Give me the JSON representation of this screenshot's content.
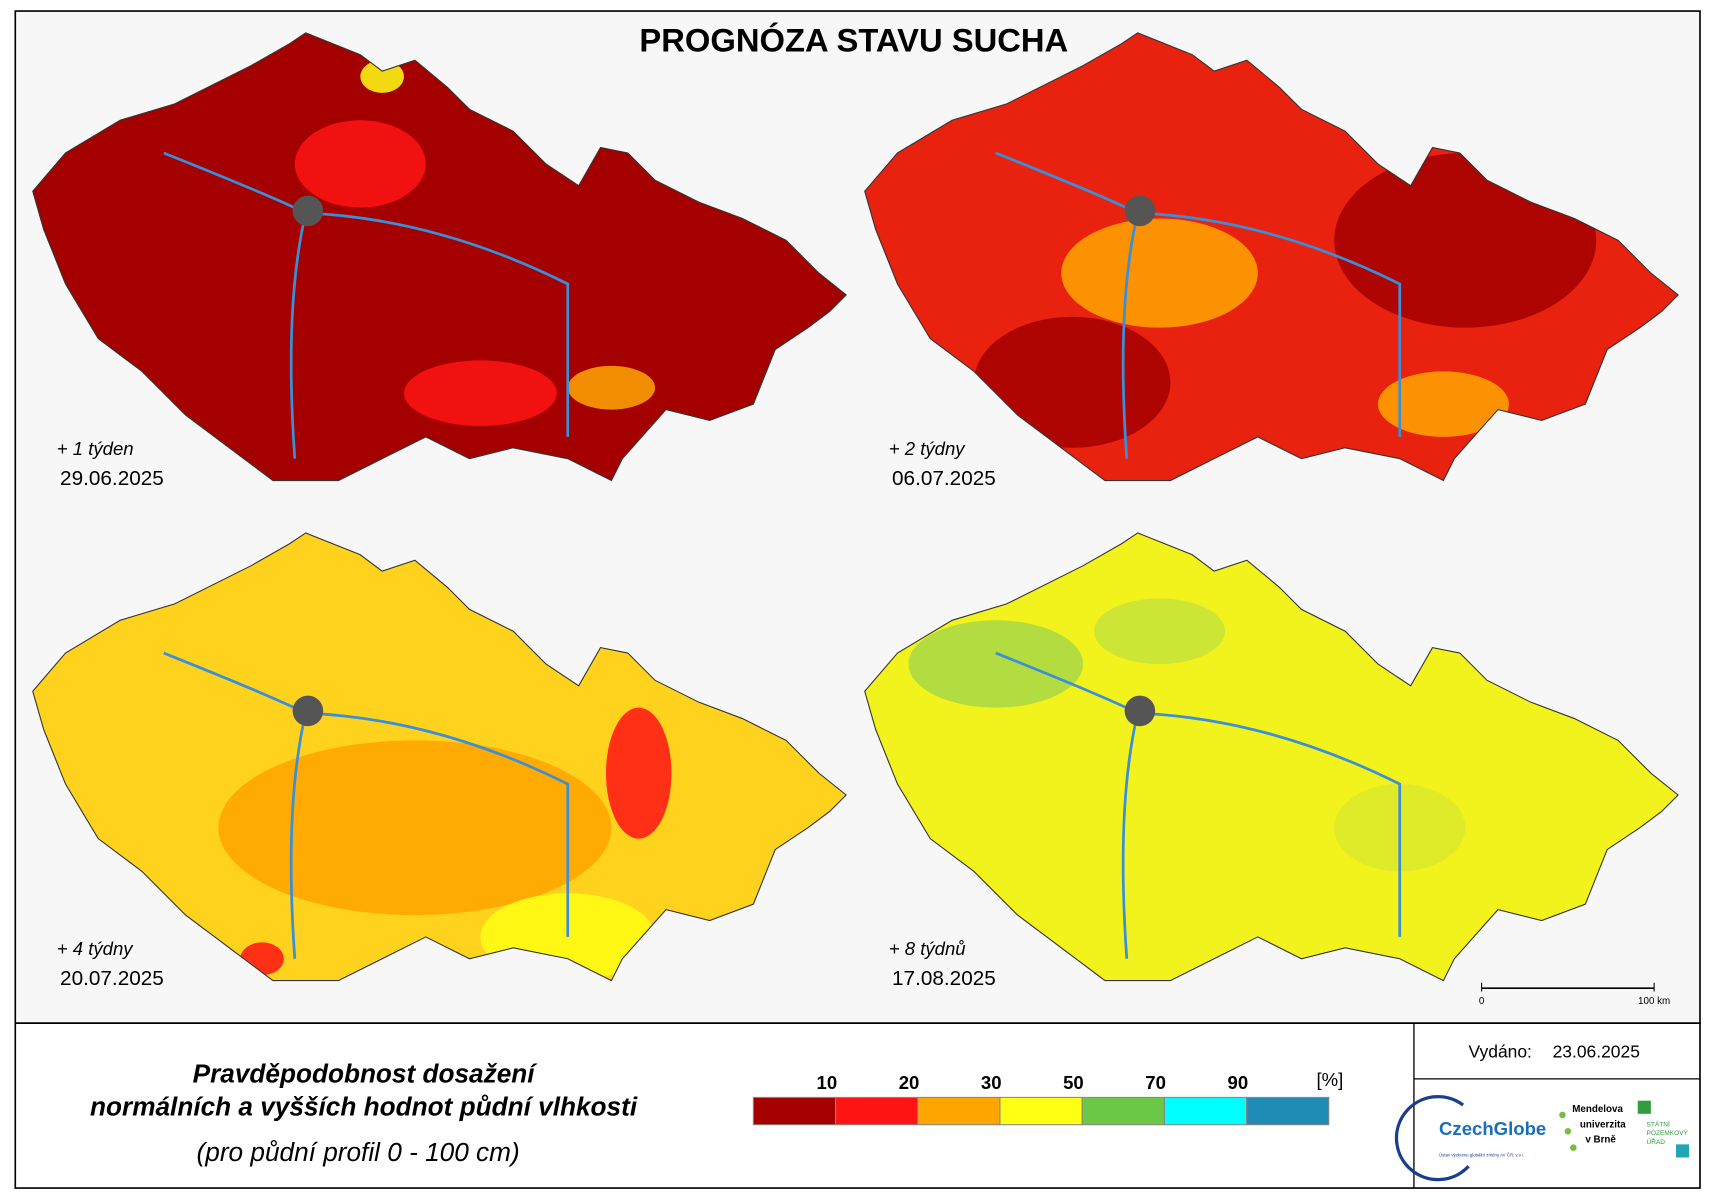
{
  "title": "PROGNÓZA STAVU SUCHA",
  "panels": [
    {
      "label": "+ 1 týden",
      "date": "29.06.2025"
    },
    {
      "label": "+ 2 týdny",
      "date": "06.07.2025"
    },
    {
      "label": "+ 4 týdny",
      "date": "20.07.2025"
    },
    {
      "label": "+ 8 týdnů",
      "date": "17.08.2025"
    }
  ],
  "scale_bar": {
    "start": "0",
    "end": "100 km"
  },
  "legend": {
    "title_lines": [
      "Pravděpodobnost dosažení",
      "normálních a vyšších hodnot půdní vlhkosti"
    ],
    "subtitle": "(pro půdní profil 0 - 100 cm)",
    "unit": "[%]",
    "ticks": [
      "10",
      "20",
      "30",
      "50",
      "70",
      "90"
    ],
    "colors": [
      "#a50000",
      "#ff1414",
      "#ffa500",
      "#ffff14",
      "#6ac846",
      "#00ffff",
      "#1e8cb4"
    ]
  },
  "issued": {
    "label": "Vydáno:",
    "date": "23.06.2025"
  },
  "logos": {
    "czechglobe": "CzechGlobe",
    "czechglobe_sub": "Ústav výzkumu globální změny AV ČR, v.v.i.",
    "mendelu": [
      "Mendelova",
      "univerzita",
      "v Brně"
    ],
    "spu": [
      "STÁTNÍ",
      "POZEMKOVÝ",
      "ÚŘAD"
    ]
  }
}
